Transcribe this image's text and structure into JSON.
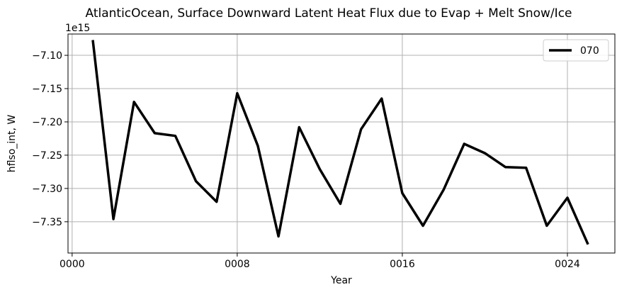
{
  "chart_data": {
    "type": "line",
    "title": "AtlanticOcean, Surface Downward Latent Heat Flux due to Evap + Melt Snow/Ice",
    "xlabel": "Year",
    "ylabel": "hflso_int, W",
    "offset_text": "1e15",
    "y_multiplier": 1000000000000000.0,
    "xlim": [
      -0.2,
      26.3
    ],
    "ylim": [
      -7.397,
      -7.068
    ],
    "xticks": [
      0,
      8,
      16,
      24
    ],
    "xtick_labels": [
      "0000",
      "0008",
      "0016",
      "0024"
    ],
    "yticks": [
      -7.35,
      -7.3,
      -7.25,
      -7.2,
      -7.15,
      -7.1
    ],
    "ytick_labels": [
      "−7.35",
      "−7.30",
      "−7.25",
      "−7.20",
      "−7.15",
      "−7.10"
    ],
    "grid": true,
    "legend_position": "top-right",
    "series": [
      {
        "name": "070",
        "color": "#000000",
        "x": [
          1,
          2,
          3,
          4,
          5,
          6,
          7,
          8,
          9,
          10,
          11,
          12,
          13,
          14,
          15,
          16,
          17,
          18,
          19,
          20,
          21,
          22,
          23,
          24,
          25
        ],
        "values": [
          -7.077,
          -7.346,
          -7.17,
          -7.217,
          -7.221,
          -7.289,
          -7.32,
          -7.157,
          -7.236,
          -7.372,
          -7.208,
          -7.271,
          -7.323,
          -7.211,
          -7.165,
          -7.307,
          -7.356,
          -7.302,
          -7.233,
          -7.247,
          -7.268,
          -7.269,
          -7.356,
          -7.314,
          -7.384
        ]
      }
    ]
  }
}
